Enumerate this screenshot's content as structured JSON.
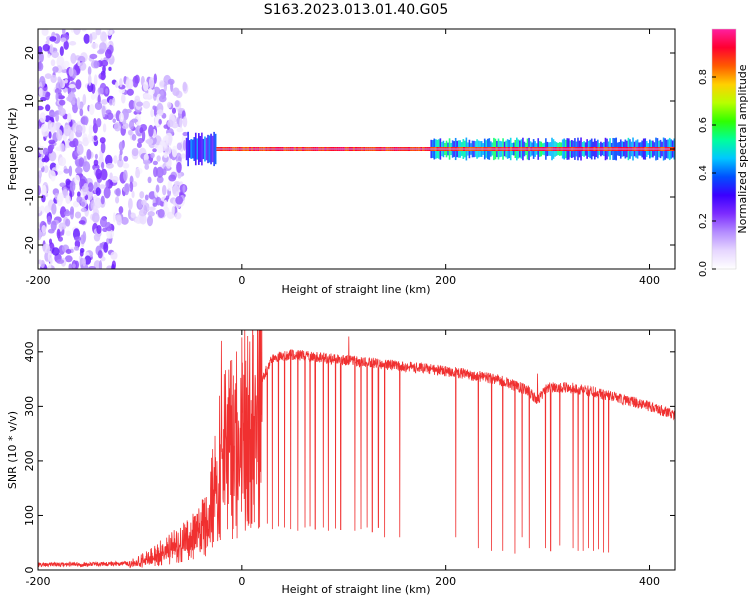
{
  "figure": {
    "title": "S163.2023.013.01.40.G05"
  },
  "chart_data": [
    {
      "type": "heatmap",
      "xlabel": "Height of straight line (km)",
      "ylabel": "Frequency (Hz)",
      "xlim": [
        -200,
        425
      ],
      "ylim": [
        -25,
        25
      ],
      "xticks": [
        -200,
        0,
        200,
        400
      ],
      "yticks": [
        -20,
        -10,
        0,
        10,
        20
      ],
      "colorbar": {
        "label": "Normalized spectral amplitude",
        "range": [
          0,
          1
        ],
        "ticks": [
          0.0,
          0.2,
          0.4,
          0.6,
          0.8
        ],
        "tick_labels": [
          "0.0",
          "0.2",
          "0.4",
          "0.6",
          "0.8"
        ],
        "colormap": [
          "#ffffff",
          "#e6d6ff",
          "#b48cff",
          "#7d2cff",
          "#3a00ff",
          "#0050ff",
          "#00c8ff",
          "#00ff9a",
          "#30ff00",
          "#b8ff00",
          "#ffd000",
          "#ff5a00",
          "#ff0030",
          "#ff1fa0"
        ]
      },
      "regions": [
        {
          "x": [
            -200,
            -125
          ],
          "freq_range": [
            -25,
            25
          ],
          "level": 0.15,
          "note": "scattered noise"
        },
        {
          "x": [
            -125,
            -55
          ],
          "freq_range": [
            -15,
            15
          ],
          "level": 0.12,
          "note": "decaying scatter"
        },
        {
          "x": [
            -55,
            -25
          ],
          "freq_range": [
            -3,
            3
          ],
          "level": 0.35,
          "note": "onset"
        },
        {
          "x": [
            -25,
            425
          ],
          "freq_center": 0,
          "level": 0.95,
          "note": "carrier line near 0 Hz"
        },
        {
          "x": [
            185,
            320
          ],
          "freq_range": [
            -2,
            2
          ],
          "level": 0.45,
          "note": "broadened line"
        },
        {
          "x": [
            320,
            425
          ],
          "freq_range": [
            -2,
            2
          ],
          "level": 0.4,
          "note": "broadened line"
        }
      ]
    },
    {
      "type": "line",
      "xlabel": "Height of straight line (km)",
      "ylabel": "SNR (10 * v/v)",
      "xlim": [
        -200,
        425
      ],
      "ylim": [
        0,
        440
      ],
      "xticks": [
        -200,
        0,
        200,
        400
      ],
      "yticks": [
        0,
        100,
        200,
        300,
        400
      ],
      "color": "#f03030",
      "envelope": {
        "x": [
          -200,
          -150,
          -110,
          -90,
          -70,
          -50,
          -35,
          -28,
          -22,
          -10,
          0,
          10,
          20,
          30,
          50,
          100,
          150,
          200,
          250,
          280,
          290,
          300,
          320,
          350,
          400,
          425
        ],
        "y": [
          10,
          10,
          12,
          25,
          45,
          65,
          90,
          170,
          230,
          250,
          280,
          310,
          350,
          390,
          395,
          385,
          375,
          365,
          350,
          330,
          310,
          335,
          335,
          325,
          300,
          285
        ]
      },
      "spikes_up": [
        {
          "x": -20,
          "y": 420
        },
        {
          "x": 105,
          "y": 428
        },
        {
          "x": 290,
          "y": 360
        }
      ],
      "dropouts_x": [
        25,
        30,
        36,
        42,
        48,
        55,
        62,
        67,
        72,
        80,
        85,
        92,
        97,
        105,
        111,
        117,
        123,
        128,
        134,
        140,
        155,
        210,
        232,
        245,
        256,
        268,
        275,
        282,
        290,
        298,
        303,
        312,
        325,
        330,
        335,
        340,
        345,
        350,
        355,
        360
      ],
      "dropouts_y": [
        85,
        75,
        80,
        78,
        75,
        72,
        78,
        80,
        75,
        78,
        72,
        76,
        74,
        80,
        72,
        75,
        78,
        70,
        78,
        60,
        60,
        60,
        40,
        35,
        35,
        30,
        60,
        40,
        45,
        40,
        35,
        45,
        40,
        35,
        35,
        40,
        35,
        38,
        32,
        32
      ]
    }
  ]
}
